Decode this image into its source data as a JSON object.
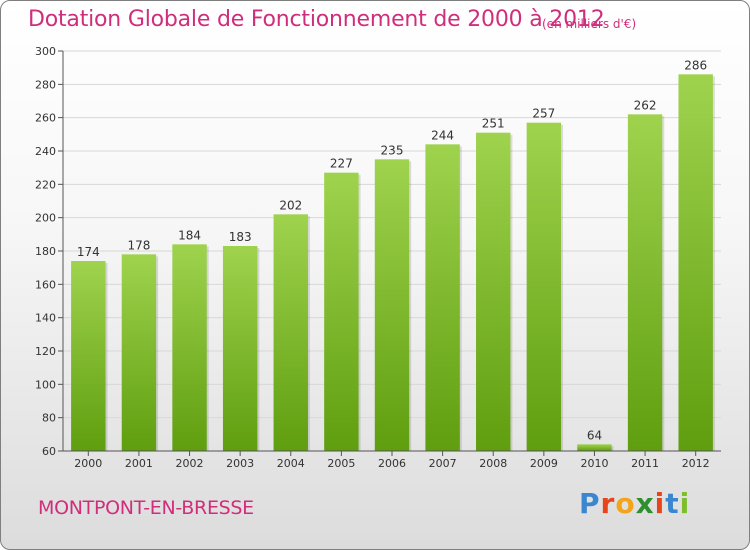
{
  "header": {
    "title": "Dotation Globale de Fonctionnement de 2000 à 2012",
    "subtitle": "(en milliers d'€)"
  },
  "footer": {
    "commune": "MONTPONT-EN-BRESSE",
    "logo": {
      "letters": [
        "P",
        "r",
        "o",
        "x",
        "i",
        "t",
        "i"
      ]
    }
  },
  "colors": {
    "title": "#d02e7c",
    "bar_top": "#9fd34e",
    "bar_bottom": "#5f9e0f",
    "grid": "#d8d8d8",
    "axis": "#555555"
  },
  "chart_data": {
    "type": "bar",
    "title": "Dotation Globale de Fonctionnement de 2000 à 2012",
    "subtitle": "(en milliers d'€)",
    "xlabel": "",
    "ylabel": "",
    "categories": [
      "2000",
      "2001",
      "2002",
      "2003",
      "2004",
      "2005",
      "2006",
      "2007",
      "2008",
      "2009",
      "2010",
      "2011",
      "2012"
    ],
    "values": [
      174,
      178,
      184,
      183,
      202,
      227,
      235,
      244,
      251,
      257,
      64,
      262,
      286
    ],
    "ylim": [
      60,
      300
    ],
    "yticks": [
      60,
      80,
      100,
      120,
      140,
      160,
      180,
      200,
      220,
      240,
      260,
      280,
      300
    ],
    "grid": true,
    "legend": "none"
  }
}
